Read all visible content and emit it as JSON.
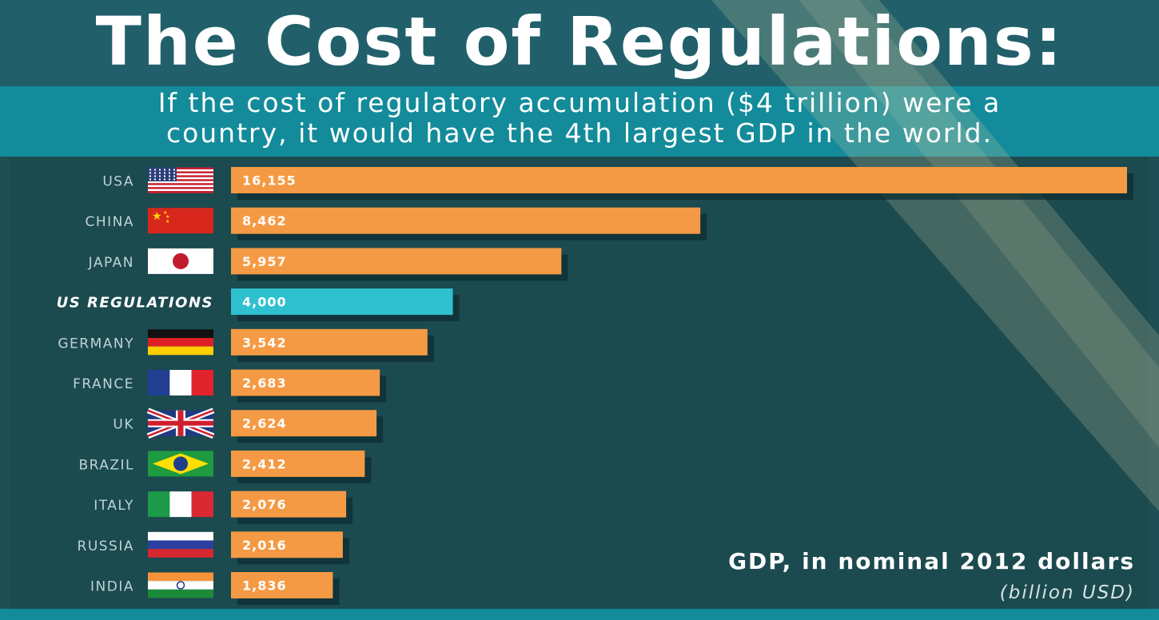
{
  "title": "The Cost of Regulations:",
  "subtitle_line1": "If the cost of regulatory accumulation ($4 trillion) were a",
  "subtitle_line2": "country, it would have the 4th largest GDP in the world.",
  "unit_title": "GDP, in nominal 2012 dollars",
  "unit_subtitle": "(billion USD)",
  "colors": {
    "bar": "#f59a44",
    "highlight": "#2fc1cf",
    "background": "#1b4a4f",
    "header": "#21606b",
    "subheader": "#138b9a"
  },
  "chart_data": {
    "type": "bar",
    "orientation": "horizontal",
    "title": "The Cost of Regulations:",
    "categories": [
      "USA",
      "CHINA",
      "JAPAN",
      "US REGULATIONS",
      "GERMANY",
      "FRANCE",
      "UK",
      "BRAZIL",
      "ITALY",
      "RUSSIA",
      "INDIA"
    ],
    "value_labels": [
      "16,155",
      "8,462",
      "5,957",
      "4,000",
      "3,542",
      "2,683",
      "2,624",
      "2,412",
      "2,076",
      "2,016",
      "1,836"
    ],
    "values": [
      16155,
      8462,
      5957,
      4000,
      3542,
      2683,
      2624,
      2412,
      2076,
      2016,
      1836
    ],
    "flags": [
      "usa-flag-icon",
      "china-flag-icon",
      "japan-flag-icon",
      "",
      "germany-flag-icon",
      "france-flag-icon",
      "uk-flag-icon",
      "brazil-flag-icon",
      "italy-flag-icon",
      "russia-flag-icon",
      "india-flag-icon"
    ],
    "highlight_index": 3,
    "xlim": [
      0,
      16155
    ],
    "grid": false,
    "legend": "none"
  }
}
